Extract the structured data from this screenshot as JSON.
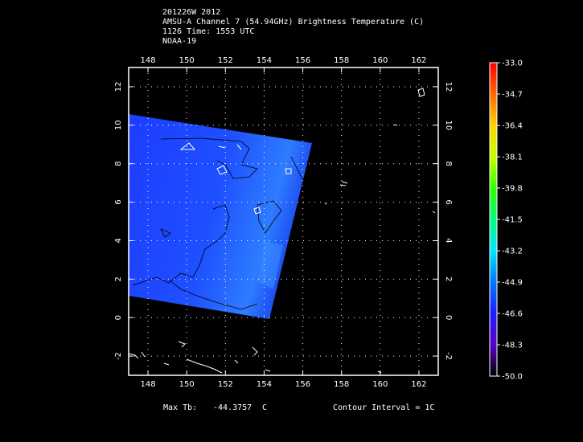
{
  "title": {
    "line1": "201226W 2012",
    "line2": "AMSU-A Channel 7 (54.94GHz) Brightness Temperature (C)",
    "line3": "1126 Time: 1553 UTC",
    "line4": "NOAA-19"
  },
  "map": {
    "lon_range": [
      147,
      163
    ],
    "lat_range": [
      -3,
      13
    ],
    "lon_ticks": [
      "148",
      "150",
      "152",
      "154",
      "156",
      "158",
      "160",
      "162"
    ],
    "lat_ticks": [
      "12",
      "10",
      "8",
      "6",
      "4",
      "2",
      "0",
      "-2"
    ],
    "grid": true
  },
  "colorbar": {
    "labels": [
      "-33.0",
      "-34.7",
      "-36.4",
      "-38.1",
      "-39.8",
      "-41.5",
      "-43.2",
      "-44.9",
      "-46.6",
      "-48.3",
      "-50.0"
    ],
    "colors": [
      "#ff0000",
      "#ff6a00",
      "#ffd200",
      "#c8ff00",
      "#32ff00",
      "#00ff80",
      "#00e6ff",
      "#0078ff",
      "#1e1eff",
      "#5a00c8",
      "#000000"
    ]
  },
  "footer": {
    "max_tb_label": "Max Tb:",
    "max_tb_value": "-44.3757",
    "max_tb_unit": "C",
    "contour": "Contour Interval = 1C"
  }
}
